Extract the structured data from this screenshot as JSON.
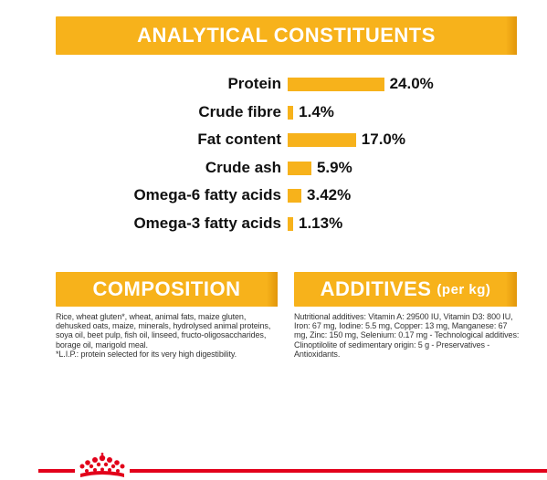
{
  "analytical": {
    "title": "ANALYTICAL CONSTITUENTS",
    "items": [
      {
        "label": "Protein",
        "value": "24.0%",
        "amount": 24.0
      },
      {
        "label": "Crude fibre",
        "value": "1.4%",
        "amount": 1.4
      },
      {
        "label": "Fat content",
        "value": "17.0%",
        "amount": 17.0
      },
      {
        "label": "Crude ash",
        "value": "5.9%",
        "amount": 5.9
      },
      {
        "label": "Omega-6 fatty acids",
        "value": "3.42%",
        "amount": 3.42
      },
      {
        "label": "Omega-3 fatty acids",
        "value": "1.13%",
        "amount": 1.13
      }
    ]
  },
  "composition": {
    "title": "COMPOSITION",
    "text": "Rice, wheat gluten*, wheat, animal fats, maize gluten, dehusked oats, maize, minerals, hydrolysed animal proteins, soya oil, beet pulp, fish oil, linseed, fructo-oligosaccharides, borage oil, marigold meal.",
    "note": "*L.I.P.: protein selected for its very high digestibility."
  },
  "additives": {
    "title": "ADDITIVES",
    "title_suffix": "(per kg)",
    "text": "Nutritional additives: Vitamin A: 29500 IU, Vitamin D3: 800 IU, Iron: 67 mg, Iodine: 5.5 mg, Copper: 13 mg, Manganese: 67 mg, Zinc: 150 mg, Selenium: 0.17 mg - Technological additives: Clinoptilolite of sedimentary origin: 5 g - Preservatives - Antioxidants."
  },
  "colors": {
    "accent": "#f7b21b",
    "brand_red": "#e2001a"
  },
  "footer": {
    "logo_icon": "royal-canin-crown-icon"
  }
}
